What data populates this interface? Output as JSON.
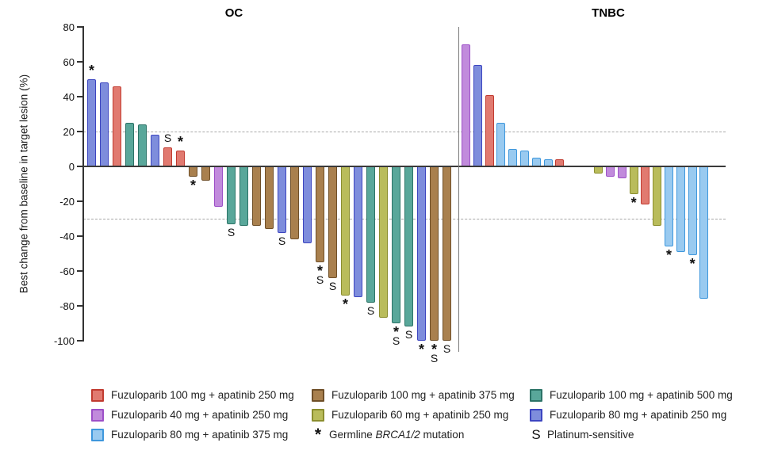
{
  "figure": {
    "ylabel": "Best change from baseline in target lesion (%)"
  },
  "axis": {
    "ymax": 80,
    "ymin": -100,
    "ticks": [
      80,
      60,
      40,
      20,
      0,
      -20,
      -40,
      -60,
      -80,
      -100
    ],
    "reference_lines": [
      20,
      -30
    ],
    "grid": "off",
    "reference_line_color": "#a8a8a8",
    "axis_color": "#333333"
  },
  "series_colors": {
    "red": {
      "fill": "#E17A70",
      "border": "#C13B30",
      "label": "Fuzuloparib 100 mg + apatinib 250 mg"
    },
    "brown": {
      "fill": "#A9804E",
      "border": "#6F4F28",
      "label": "Fuzuloparib 100 mg + apatinib 375 mg"
    },
    "teal": {
      "fill": "#59A79A",
      "border": "#2C7367",
      "label": "Fuzuloparib 100 mg + apatinib 500 mg"
    },
    "purple": {
      "fill": "#C18BDC",
      "border": "#9D50C8",
      "label": "Fuzuloparib 40 mg + apatinib 250 mg"
    },
    "olive": {
      "fill": "#B9BC5B",
      "border": "#8B8E2F",
      "label": "Fuzuloparib 60 mg + apatinib 250 mg"
    },
    "blue": {
      "fill": "#7E8DDC",
      "border": "#3C45C0",
      "label": "Fuzuloparib 80 mg + apatinib 250 mg"
    },
    "sky": {
      "fill": "#99CAF0",
      "border": "#3E97DC",
      "label": "Fuzuloparib 80 mg + apatinib 375 mg"
    }
  },
  "chart_data": [
    {
      "type": "bar",
      "title": "OC",
      "ylabel": "Best change from baseline in target lesion (%)",
      "ylim": [
        -100,
        80
      ],
      "annotation_key": {
        "*": "Germline BRCA1/2 mutation",
        "S": "Platinum-sensitive"
      },
      "bars": [
        {
          "v": 50,
          "g": "blue",
          "a": "*"
        },
        {
          "v": 48,
          "g": "blue",
          "a": ""
        },
        {
          "v": 46,
          "g": "red",
          "a": ""
        },
        {
          "v": 25,
          "g": "teal",
          "a": ""
        },
        {
          "v": 24,
          "g": "teal",
          "a": ""
        },
        {
          "v": 18,
          "g": "blue",
          "a": ""
        },
        {
          "v": 11,
          "g": "red",
          "a": "S"
        },
        {
          "v": 9,
          "g": "red",
          "a": "*"
        },
        {
          "v": -6,
          "g": "brown",
          "a": "*"
        },
        {
          "v": -8,
          "g": "brown",
          "a": ""
        },
        {
          "v": -23,
          "g": "purple",
          "a": ""
        },
        {
          "v": -33,
          "g": "teal",
          "a": "S"
        },
        {
          "v": -34,
          "g": "teal",
          "a": ""
        },
        {
          "v": -34,
          "g": "brown",
          "a": ""
        },
        {
          "v": -36,
          "g": "brown",
          "a": ""
        },
        {
          "v": -38,
          "g": "blue",
          "a": "S"
        },
        {
          "v": -42,
          "g": "brown",
          "a": ""
        },
        {
          "v": -44,
          "g": "blue",
          "a": ""
        },
        {
          "v": -55,
          "g": "brown",
          "a": "*S"
        },
        {
          "v": -64,
          "g": "brown",
          "a": "S"
        },
        {
          "v": -74,
          "g": "olive",
          "a": "*"
        },
        {
          "v": -75,
          "g": "blue",
          "a": ""
        },
        {
          "v": -78,
          "g": "teal",
          "a": "S"
        },
        {
          "v": -87,
          "g": "olive",
          "a": ""
        },
        {
          "v": -90,
          "g": "teal",
          "a": "*S"
        },
        {
          "v": -92,
          "g": "teal",
          "a": "S"
        },
        {
          "v": -100,
          "g": "blue",
          "a": "*"
        },
        {
          "v": -100,
          "g": "brown",
          "a": "*S"
        },
        {
          "v": -100,
          "g": "brown",
          "a": "S"
        }
      ]
    },
    {
      "type": "bar",
      "title": "TNBC",
      "ylabel": "Best change from baseline in target lesion (%)",
      "ylim": [
        -100,
        80
      ],
      "annotation_key": {
        "*": "Germline BRCA1/2 mutation",
        "S": "Platinum-sensitive"
      },
      "bars": [
        {
          "v": 70,
          "g": "purple",
          "a": ""
        },
        {
          "v": 58,
          "g": "blue",
          "a": ""
        },
        {
          "v": 41,
          "g": "red",
          "a": ""
        },
        {
          "v": 25,
          "g": "sky",
          "a": ""
        },
        {
          "v": 10,
          "g": "sky",
          "a": ""
        },
        {
          "v": 9,
          "g": "sky",
          "a": ""
        },
        {
          "v": 5,
          "g": "sky",
          "a": ""
        },
        {
          "v": 4,
          "g": "sky",
          "a": ""
        },
        {
          "v": 4,
          "g": "red",
          "a": ""
        },
        {
          "v": -4,
          "g": "olive",
          "a": "",
          "gap_before": true
        },
        {
          "v": -6,
          "g": "purple",
          "a": ""
        },
        {
          "v": -7,
          "g": "purple",
          "a": ""
        },
        {
          "v": -16,
          "g": "olive",
          "a": "*"
        },
        {
          "v": -22,
          "g": "red",
          "a": ""
        },
        {
          "v": -34,
          "g": "olive",
          "a": ""
        },
        {
          "v": -46,
          "g": "sky",
          "a": "*"
        },
        {
          "v": -49,
          "g": "sky",
          "a": ""
        },
        {
          "v": -51,
          "g": "sky",
          "a": "*"
        },
        {
          "v": -76,
          "g": "sky",
          "a": ""
        }
      ]
    }
  ],
  "legend": {
    "columns": [
      {
        "items": [
          {
            "swatch": "red",
            "label": "Fuzuloparib 100 mg + apatinib 250 mg"
          },
          {
            "swatch": "purple",
            "label": "Fuzuloparib 40 mg + apatinib 250 mg"
          },
          {
            "swatch": "sky",
            "label": "Fuzuloparib 80 mg + apatinib 375 mg"
          }
        ]
      },
      {
        "items": [
          {
            "swatch": "brown",
            "label": "Fuzuloparib 100 mg + apatinib 375 mg"
          },
          {
            "swatch": "olive",
            "label": "Fuzuloparib 60 mg + apatinib 250 mg"
          },
          {
            "symbol": "*",
            "label_parts": [
              "Germline ",
              "BRCA1/2",
              " mutation"
            ]
          }
        ]
      },
      {
        "items": [
          {
            "swatch": "teal",
            "label": "Fuzuloparib 100 mg + apatinib 500 mg"
          },
          {
            "swatch": "blue",
            "label": "Fuzuloparib 80 mg + apatinib 250 mg"
          },
          {
            "symbol": "S",
            "label": "Platinum-sensitive"
          }
        ]
      }
    ]
  }
}
